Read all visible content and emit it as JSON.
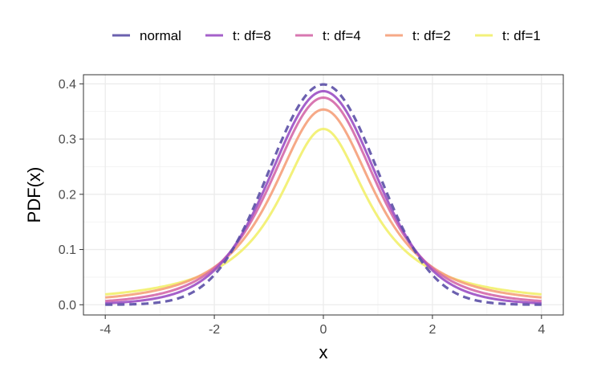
{
  "chart_data": {
    "type": "line",
    "title": "",
    "xlabel": "x",
    "ylabel": "PDF(x)",
    "xlim": [
      -4,
      4
    ],
    "ylim": [
      0,
      0.4
    ],
    "x_ticks": [
      -4,
      -2,
      0,
      2,
      4
    ],
    "y_ticks": [
      0.0,
      0.1,
      0.2,
      0.3,
      0.4
    ],
    "x_tick_labels": [
      "-4",
      "-2",
      "0",
      "2",
      "4"
    ],
    "y_tick_labels": [
      "0.0",
      "0.1",
      "0.2",
      "0.3",
      "0.4"
    ],
    "grid": true,
    "legend_position": "top",
    "x": [
      -4,
      -3,
      -2,
      -1.5,
      -1,
      -0.5,
      0,
      0.5,
      1,
      1.5,
      2,
      3,
      4
    ],
    "series": [
      {
        "name": "normal",
        "label": "normal",
        "dist": "normal",
        "color": "#5b4fa6",
        "dashed": true,
        "values": [
          0.0001,
          0.0044,
          0.054,
          0.1295,
          0.242,
          0.3521,
          0.3989,
          0.3521,
          0.242,
          0.1295,
          0.054,
          0.0044,
          0.0001
        ]
      },
      {
        "name": "t: df=8",
        "label": "t: df=8",
        "dist": "t",
        "df": 8,
        "color": "#9b4fc4",
        "dashed": false,
        "values": [
          0.0042,
          0.0173,
          0.0647,
          0.1262,
          0.2276,
          0.3364,
          0.3867,
          0.3364,
          0.2276,
          0.1262,
          0.0647,
          0.0173,
          0.0042
        ]
      },
      {
        "name": "t: df=4",
        "label": "t: df=4",
        "dist": "t",
        "df": 4,
        "color": "#d468a8",
        "dashed": false,
        "values": [
          0.0066,
          0.0197,
          0.0663,
          0.1216,
          0.2147,
          0.3226,
          0.375,
          0.3226,
          0.2147,
          0.1216,
          0.0663,
          0.0197,
          0.0066
        ]
      },
      {
        "name": "t: df=2",
        "label": "t: df=2",
        "dist": "t",
        "df": 2,
        "color": "#f5a07a",
        "dashed": false,
        "values": [
          0.0131,
          0.0273,
          0.068,
          0.113,
          0.1925,
          0.2962,
          0.3536,
          0.2962,
          0.1925,
          0.113,
          0.068,
          0.0273,
          0.0131
        ]
      },
      {
        "name": "t: df=1",
        "label": "t: df=1",
        "dist": "t",
        "df": 1,
        "color": "#f2ef6b",
        "dashed": false,
        "values": [
          0.0187,
          0.0318,
          0.0637,
          0.0979,
          0.1592,
          0.2546,
          0.3183,
          0.2546,
          0.1592,
          0.0979,
          0.0637,
          0.0318,
          0.0187
        ]
      }
    ]
  }
}
